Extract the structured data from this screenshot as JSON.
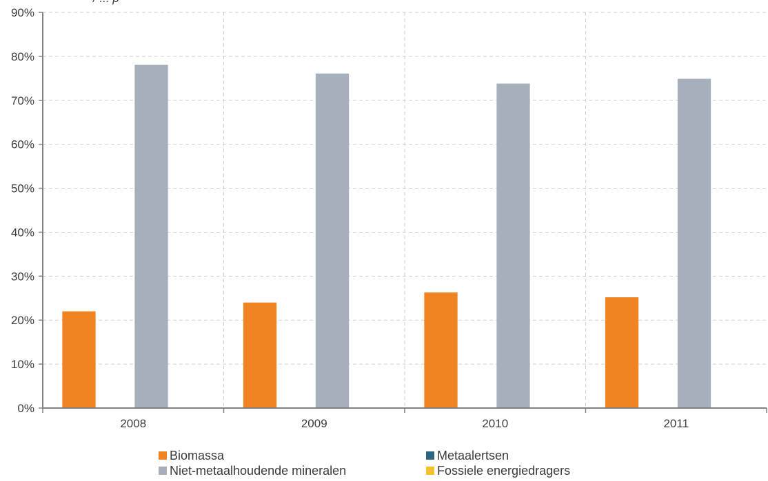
{
  "header": {
    "clipped_title": "/ ... p"
  },
  "chart_data": {
    "type": "bar",
    "categories": [
      "2008",
      "2009",
      "2010",
      "2011"
    ],
    "series": [
      {
        "name": "Biomassa",
        "color": "#f08423",
        "values": [
          22,
          24,
          26.3,
          25.2
        ]
      },
      {
        "name": "Metaalertsen",
        "color": "#2e6680",
        "values": [
          0,
          0,
          0,
          0
        ]
      },
      {
        "name": "Niet-metaalhoudende mineralen",
        "color": "#a5b0bc",
        "values": [
          78.1,
          76.1,
          73.8,
          74.9
        ]
      },
      {
        "name": "Fossiele energiedragers",
        "color": "#fbc02d",
        "values": [
          0,
          0,
          0,
          0
        ]
      }
    ],
    "ylim": [
      0,
      90
    ],
    "yticks": [
      "0%",
      "10%",
      "20%",
      "30%",
      "40%",
      "50%",
      "60%",
      "70%",
      "80%",
      "90%"
    ],
    "grid": true,
    "legend_position": "bottom"
  }
}
